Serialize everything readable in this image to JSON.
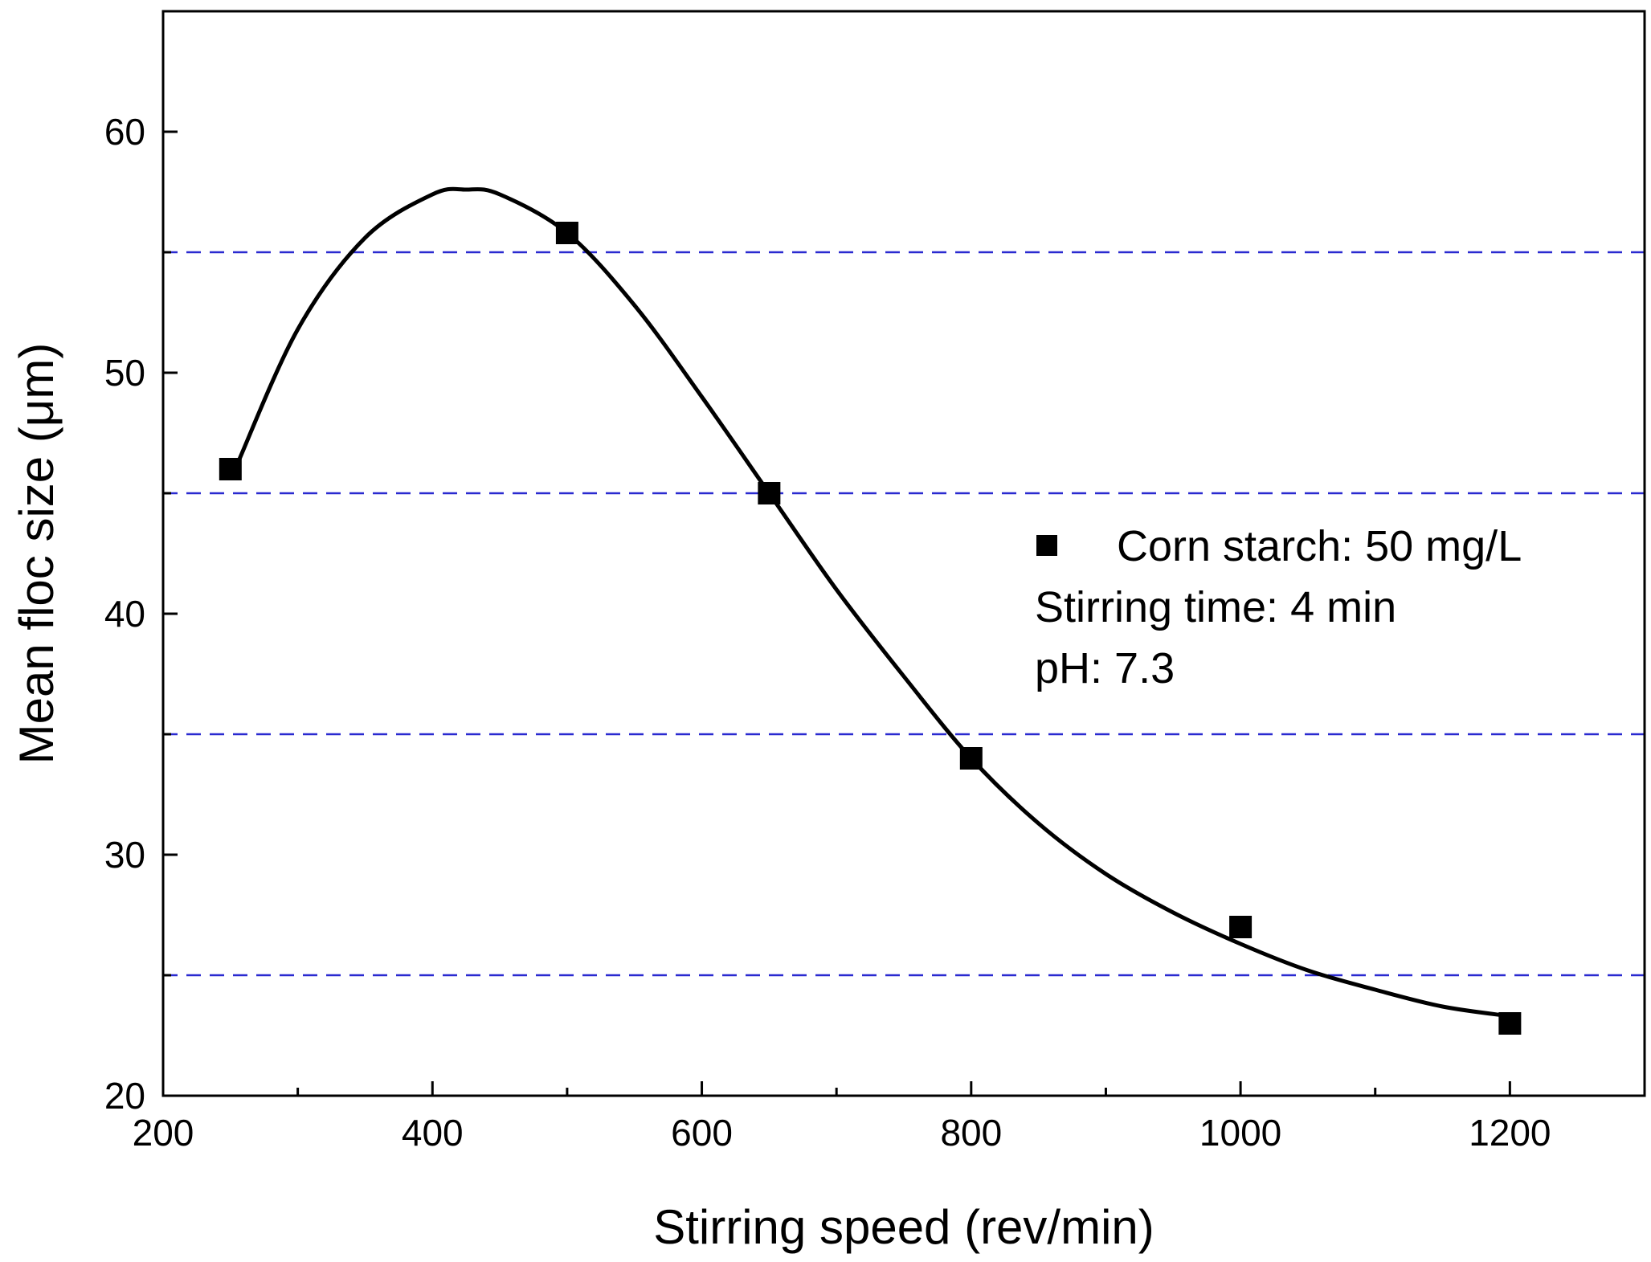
{
  "chart_data": {
    "type": "scatter",
    "title": "",
    "xlabel": "Stirring speed (rev/min)",
    "ylabel": "Mean floc size (μm)",
    "xlim": [
      200,
      1300
    ],
    "ylim": [
      20,
      65
    ],
    "x_ticks": [
      200,
      400,
      600,
      800,
      1000,
      1200
    ],
    "x_minor_ticks": [
      300,
      500,
      700,
      900,
      1100
    ],
    "y_ticks": [
      20,
      30,
      40,
      50,
      60
    ],
    "y_minor_ticks": [
      25,
      35,
      45,
      55
    ],
    "grid": false,
    "reference_lines": [
      {
        "y": 25,
        "color": "#2a2ad0",
        "style": "dashed"
      },
      {
        "y": 35,
        "color": "#2a2ad0",
        "style": "dashed"
      },
      {
        "y": 45,
        "color": "#2a2ad0",
        "style": "dashed"
      },
      {
        "y": 55,
        "color": "#2a2ad0",
        "style": "dashed"
      }
    ],
    "series": [
      {
        "name": "Corn starch: 50 mg/L",
        "marker": "square",
        "color": "#000000",
        "points": [
          {
            "x": 250,
            "y": 46
          },
          {
            "x": 500,
            "y": 55.8
          },
          {
            "x": 650,
            "y": 45
          },
          {
            "x": 800,
            "y": 34
          },
          {
            "x": 1000,
            "y": 27
          },
          {
            "x": 1200,
            "y": 23
          }
        ]
      }
    ],
    "fit_curve": {
      "color": "#000000",
      "points": [
        {
          "x": 255,
          "y": 46.2
        },
        {
          "x": 300,
          "y": 51.8
        },
        {
          "x": 350,
          "y": 55.6
        },
        {
          "x": 400,
          "y": 57.4
        },
        {
          "x": 425,
          "y": 57.6
        },
        {
          "x": 450,
          "y": 57.4
        },
        {
          "x": 500,
          "y": 55.8
        },
        {
          "x": 550,
          "y": 52.8
        },
        {
          "x": 600,
          "y": 49.0
        },
        {
          "x": 650,
          "y": 45.0
        },
        {
          "x": 700,
          "y": 41.0
        },
        {
          "x": 750,
          "y": 37.4
        },
        {
          "x": 800,
          "y": 34.0
        },
        {
          "x": 850,
          "y": 31.3
        },
        {
          "x": 900,
          "y": 29.2
        },
        {
          "x": 950,
          "y": 27.6
        },
        {
          "x": 1000,
          "y": 26.3
        },
        {
          "x": 1050,
          "y": 25.2
        },
        {
          "x": 1100,
          "y": 24.4
        },
        {
          "x": 1150,
          "y": 23.7
        },
        {
          "x": 1200,
          "y": 23.3
        }
      ]
    },
    "legend": {
      "placement": "middle-right",
      "lines": [
        "Corn starch: 50 mg/L",
        "Stirring time: 4 min",
        "pH: 7.3"
      ]
    }
  }
}
